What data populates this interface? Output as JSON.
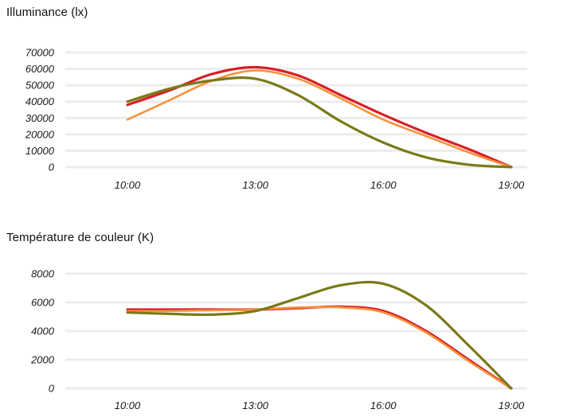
{
  "chart_data": [
    {
      "type": "line",
      "title": "Illuminance (lx)",
      "xlabel": "",
      "ylabel": "",
      "x_ticks": [
        "10:00",
        "13:00",
        "16:00",
        "19:00"
      ],
      "x_range": [
        10,
        19
      ],
      "y_ticks": [
        70000,
        60000,
        50000,
        40000,
        30000,
        20000,
        10000,
        0
      ],
      "ylim": [
        0,
        70000
      ],
      "grid": true,
      "series": [
        {
          "color": "#d81f26",
          "x": [
            10,
            11,
            12,
            13,
            14,
            15,
            16,
            17,
            18,
            19
          ],
          "y": [
            38000,
            47000,
            57000,
            61000,
            56000,
            44000,
            32000,
            21000,
            11000,
            0
          ]
        },
        {
          "color": "#f7913d",
          "x": [
            10,
            11,
            12,
            13,
            14,
            15,
            16,
            17,
            18,
            19
          ],
          "y": [
            29000,
            41000,
            53000,
            59000,
            54000,
            42000,
            29000,
            19000,
            9000,
            0
          ]
        },
        {
          "color": "#7a7a18",
          "x": [
            10,
            11,
            12,
            13,
            14,
            15,
            16,
            17,
            18,
            19
          ],
          "y": [
            40000,
            48000,
            53000,
            54000,
            44000,
            28000,
            15000,
            6000,
            1500,
            0
          ]
        }
      ]
    },
    {
      "type": "line",
      "title": "Température de couleur (K)",
      "xlabel": "",
      "ylabel": "",
      "x_ticks": [
        "10:00",
        "13:00",
        "16:00",
        "19:00"
      ],
      "x_range": [
        10,
        19
      ],
      "y_ticks": [
        8000,
        6000,
        4000,
        2000,
        0
      ],
      "ylim": [
        0,
        8000
      ],
      "grid": true,
      "series": [
        {
          "color": "#d81f26",
          "x": [
            10,
            11,
            12,
            13,
            14,
            15,
            16,
            17,
            18,
            19
          ],
          "y": [
            5500,
            5500,
            5500,
            5500,
            5600,
            5700,
            5400,
            4000,
            2000,
            0
          ]
        },
        {
          "color": "#f7913d",
          "x": [
            10,
            11,
            12,
            13,
            14,
            15,
            16,
            17,
            18,
            19
          ],
          "y": [
            5400,
            5400,
            5450,
            5500,
            5650,
            5650,
            5300,
            3900,
            1900,
            0
          ]
        },
        {
          "color": "#7a7a18",
          "x": [
            10,
            11,
            12,
            13,
            14,
            15,
            16,
            17,
            18,
            19
          ],
          "y": [
            5300,
            5200,
            5150,
            5400,
            6300,
            7200,
            7300,
            5800,
            3000,
            0
          ]
        }
      ]
    }
  ]
}
